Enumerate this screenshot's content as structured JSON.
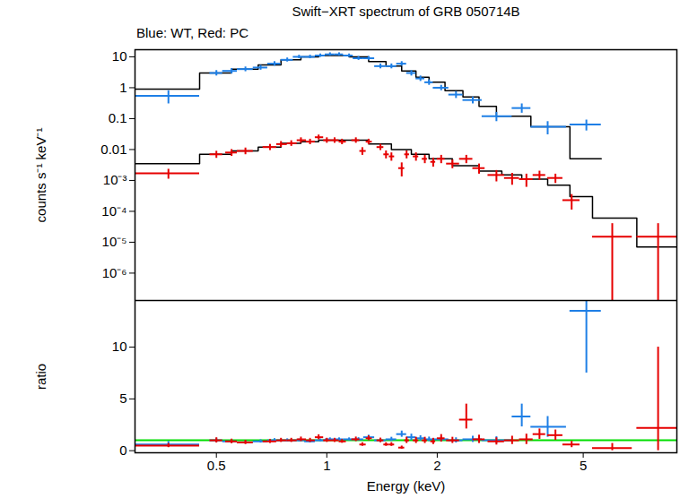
{
  "chart_data": [
    {
      "type": "scatter",
      "title": "Swift−XRT spectrum of GRB 050714B",
      "subtitle": "Blue: WT, Red: PC",
      "ylabel": "counts s⁻¹ keV⁻¹",
      "log": true,
      "tick_labels": "y",
      "xlim": [
        0.3,
        9
      ],
      "xticks": [
        0.5,
        1,
        2,
        5
      ],
      "ylim": [
        1.3e-07,
        17
      ],
      "yticks": [
        10,
        1,
        0.1,
        0.01,
        {
          "value": 0.001,
          "label": "10⁻³"
        },
        {
          "value": 0.0001,
          "label": "10⁻⁴"
        },
        {
          "value": 1e-05,
          "label": "10⁻⁵"
        },
        {
          "value": 1e-06,
          "label": "10⁻⁶"
        }
      ],
      "series": [
        {
          "color": "#1e7fe6",
          "x": [
            0.37,
            0.5,
            0.55,
            0.6,
            0.66,
            0.72,
            0.78,
            0.84,
            0.9,
            0.96,
            1.02,
            1.08,
            1.15,
            1.22,
            1.3,
            1.4,
            1.5,
            1.6,
            1.7,
            1.8,
            1.9,
            2.05,
            2.25,
            2.5,
            2.9,
            3.4,
            4.0,
            5.1
          ],
          "x_low": [
            0.3,
            0.48,
            0.52,
            0.57,
            0.63,
            0.69,
            0.75,
            0.81,
            0.87,
            0.93,
            0.99,
            1.05,
            1.11,
            1.18,
            1.26,
            1.35,
            1.45,
            1.55,
            1.65,
            1.75,
            1.85,
            1.95,
            2.15,
            2.35,
            2.65,
            3.2,
            3.6,
            4.6
          ],
          "x_high": [
            0.45,
            0.52,
            0.57,
            0.63,
            0.69,
            0.75,
            0.81,
            0.87,
            0.93,
            0.99,
            1.05,
            1.11,
            1.18,
            1.26,
            1.35,
            1.45,
            1.55,
            1.65,
            1.75,
            1.85,
            1.95,
            2.15,
            2.35,
            2.65,
            3.2,
            3.6,
            4.5,
            5.6
          ],
          "values": [
            0.55,
            3,
            3.5,
            4,
            4.5,
            6,
            8,
            10,
            10,
            11,
            12,
            12,
            11,
            9,
            9,
            5,
            5,
            6,
            3,
            2,
            1.5,
            1,
            0.6,
            0.4,
            0.12,
            0.22,
            0.055,
            0.065
          ],
          "y_low": [
            0.3,
            2.4,
            2.8,
            3.3,
            3.7,
            5,
            6.8,
            8.7,
            8.7,
            9.6,
            10.5,
            10.5,
            9.6,
            7.7,
            7.7,
            4.1,
            4.1,
            5,
            2.4,
            1.6,
            1.2,
            0.8,
            0.45,
            0.3,
            0.08,
            0.15,
            0.03,
            0.04
          ],
          "y_high": [
            0.8,
            3.6,
            4.2,
            4.7,
            5.3,
            7,
            9.2,
            11.3,
            11.3,
            12.4,
            13.5,
            13.5,
            12.4,
            10.3,
            10.3,
            5.9,
            5.9,
            7,
            3.6,
            2.4,
            1.8,
            1.2,
            0.75,
            0.5,
            0.16,
            0.3,
            0.08,
            0.09
          ],
          "model": {
            "color": "#000000",
            "x": [
              0.3,
              0.45,
              0.55,
              0.65,
              0.75,
              0.85,
              0.95,
              1.05,
              1.15,
              1.3,
              1.45,
              1.6,
              1.75,
              1.9,
              2.1,
              2.35,
              2.6,
              2.9,
              3.2,
              3.6,
              4.6,
              5.6
            ],
            "y": [
              0.9,
              3,
              4,
              5.5,
              8,
              10,
              11,
              11,
              10,
              7,
              5,
              3.5,
              2.2,
              1.5,
              0.8,
              0.5,
              0.25,
              0.12,
              0.12,
              0.055,
              0.005,
              0.005
            ]
          }
        },
        {
          "color": "#e60000",
          "x": [
            0.37,
            0.5,
            0.55,
            0.6,
            0.7,
            0.75,
            0.8,
            0.85,
            0.9,
            0.95,
            1.0,
            1.05,
            1.1,
            1.2,
            1.25,
            1.3,
            1.4,
            1.45,
            1.5,
            1.6,
            1.65,
            1.75,
            1.85,
            1.95,
            2.05,
            2.2,
            2.4,
            2.6,
            2.9,
            3.2,
            3.5,
            3.8,
            4.2,
            4.65,
            6,
            8
          ],
          "x_low": [
            0.3,
            0.48,
            0.53,
            0.57,
            0.67,
            0.73,
            0.78,
            0.83,
            0.88,
            0.93,
            0.98,
            1.03,
            1.08,
            1.17,
            1.23,
            1.28,
            1.37,
            1.43,
            1.48,
            1.57,
            1.63,
            1.72,
            1.82,
            1.92,
            2.0,
            2.12,
            2.3,
            2.5,
            2.75,
            3.05,
            3.35,
            3.65,
            4.0,
            4.4,
            5.3,
            7.0
          ],
          "x_high": [
            0.45,
            0.52,
            0.57,
            0.63,
            0.73,
            0.78,
            0.83,
            0.88,
            0.93,
            0.98,
            1.03,
            1.08,
            1.13,
            1.23,
            1.28,
            1.33,
            1.43,
            1.48,
            1.53,
            1.63,
            1.68,
            1.78,
            1.88,
            1.98,
            2.1,
            2.3,
            2.5,
            2.7,
            3.05,
            3.35,
            3.65,
            3.95,
            4.4,
            4.9,
            6.8,
            9.0
          ],
          "values": [
            0.0017,
            0.007,
            0.008,
            0.009,
            0.012,
            0.015,
            0.016,
            0.02,
            0.018,
            0.025,
            0.02,
            0.02,
            0.018,
            0.02,
            0.009,
            0.018,
            0.012,
            0.007,
            0.006,
            0.0025,
            0.007,
            0.006,
            0.005,
            0.004,
            0.005,
            0.0035,
            0.005,
            0.0025,
            0.0015,
            0.0012,
            0.0011,
            0.0015,
            0.0012,
            0.00023,
            1.5e-05,
            1.5e-05
          ],
          "y_low": [
            0.0011,
            0.0052,
            0.006,
            0.0068,
            0.0093,
            0.0118,
            0.0127,
            0.016,
            0.0144,
            0.0205,
            0.016,
            0.016,
            0.0144,
            0.016,
            0.0065,
            0.0144,
            0.0093,
            0.005,
            0.0042,
            0.0013,
            0.005,
            0.0042,
            0.0035,
            0.0027,
            0.0035,
            0.0024,
            0.0035,
            0.0016,
            0.0009,
            0.0007,
            0.0006,
            0.001,
            0.0008,
            0.00011,
            1e-07,
            1e-07
          ],
          "y_high": [
            0.0023,
            0.0088,
            0.01,
            0.0112,
            0.0147,
            0.0182,
            0.0193,
            0.024,
            0.0216,
            0.0295,
            0.024,
            0.024,
            0.0216,
            0.024,
            0.0115,
            0.0216,
            0.0147,
            0.009,
            0.0078,
            0.0037,
            0.009,
            0.0078,
            0.0065,
            0.0053,
            0.0065,
            0.0046,
            0.0065,
            0.0034,
            0.0021,
            0.0017,
            0.0016,
            0.002,
            0.0016,
            0.00035,
            4e-05,
            4e-05
          ],
          "model": {
            "color": "#000000",
            "x": [
              0.3,
              0.45,
              0.55,
              0.65,
              0.75,
              0.85,
              0.95,
              1.1,
              1.3,
              1.5,
              1.7,
              1.9,
              2.2,
              2.6,
              3.0,
              3.4,
              4.0,
              4.6,
              5.3,
              7,
              9
            ],
            "y": [
              0.0035,
              0.007,
              0.009,
              0.012,
              0.016,
              0.018,
              0.02,
              0.02,
              0.015,
              0.01,
              0.007,
              0.005,
              0.003,
              0.002,
              0.0015,
              0.0011,
              0.0007,
              0.0003,
              6e-05,
              7e-06,
              7e-06
            ]
          }
        }
      ]
    },
    {
      "type": "scatter",
      "xlabel": "Energy (keV)",
      "ylabel": "ratio",
      "log": "x",
      "xlim": [
        0.3,
        9
      ],
      "xticks": [
        0.5,
        1,
        2,
        5
      ],
      "ylim": [
        -0.2,
        14.5
      ],
      "yticks": [
        0,
        5,
        10
      ],
      "hline": {
        "value": 1,
        "color": "#00dd00"
      },
      "series": [
        {
          "color": "#1e7fe6",
          "x": [
            0.37,
            0.5,
            0.55,
            0.6,
            0.66,
            0.72,
            0.78,
            0.84,
            0.9,
            0.96,
            1.02,
            1.08,
            1.15,
            1.22,
            1.3,
            1.4,
            1.5,
            1.6,
            1.7,
            1.8,
            1.9,
            2.05,
            2.25,
            2.5,
            2.9,
            3.4,
            4.0,
            5.1
          ],
          "x_low": [
            0.3,
            0.48,
            0.52,
            0.57,
            0.63,
            0.69,
            0.75,
            0.81,
            0.87,
            0.93,
            0.99,
            1.05,
            1.11,
            1.18,
            1.26,
            1.35,
            1.45,
            1.55,
            1.65,
            1.75,
            1.85,
            1.95,
            2.15,
            2.35,
            2.65,
            3.2,
            3.6,
            4.6
          ],
          "x_high": [
            0.45,
            0.52,
            0.57,
            0.63,
            0.69,
            0.75,
            0.81,
            0.87,
            0.93,
            0.99,
            1.05,
            1.11,
            1.18,
            1.26,
            1.35,
            1.45,
            1.55,
            1.65,
            1.75,
            1.85,
            1.95,
            2.15,
            2.35,
            2.65,
            3.2,
            3.6,
            4.5,
            5.6
          ],
          "values": [
            0.6,
            1,
            0.9,
            0.8,
            0.9,
            1,
            1,
            1,
            0.9,
            1,
            1.1,
            1.1,
            1.1,
            1.1,
            1.3,
            1,
            1.1,
            1.6,
            1.3,
            1.2,
            1.1,
            1.1,
            1,
            1.1,
            1,
            3.3,
            2.3,
            13.5
          ],
          "y_low": [
            0.35,
            0.8,
            0.72,
            0.66,
            0.74,
            0.83,
            0.85,
            0.87,
            0.78,
            0.87,
            0.96,
            0.96,
            0.96,
            0.94,
            1.1,
            0.82,
            0.9,
            1.3,
            1,
            0.95,
            0.88,
            0.88,
            0.75,
            0.8,
            0.7,
            2.3,
            1.3,
            7.5
          ],
          "y_high": [
            0.9,
            1.2,
            1.08,
            0.94,
            1.06,
            1.17,
            1.15,
            1.13,
            1.02,
            1.13,
            1.24,
            1.24,
            1.24,
            1.26,
            1.5,
            1.18,
            1.3,
            1.9,
            1.6,
            1.45,
            1.32,
            1.32,
            1.25,
            1.4,
            1.35,
            4.5,
            3.3,
            20
          ]
        },
        {
          "color": "#e60000",
          "x": [
            0.37,
            0.5,
            0.55,
            0.6,
            0.7,
            0.75,
            0.8,
            0.85,
            0.9,
            0.95,
            1.0,
            1.05,
            1.1,
            1.2,
            1.25,
            1.3,
            1.4,
            1.45,
            1.5,
            1.6,
            1.65,
            1.75,
            1.85,
            1.95,
            2.05,
            2.2,
            2.4,
            2.6,
            2.9,
            3.2,
            3.5,
            3.8,
            4.2,
            4.65,
            6,
            8
          ],
          "x_low": [
            0.3,
            0.48,
            0.53,
            0.57,
            0.67,
            0.73,
            0.78,
            0.83,
            0.88,
            0.93,
            0.98,
            1.03,
            1.08,
            1.17,
            1.23,
            1.28,
            1.37,
            1.43,
            1.48,
            1.57,
            1.63,
            1.72,
            1.82,
            1.92,
            2.0,
            2.12,
            2.3,
            2.5,
            2.75,
            3.05,
            3.35,
            3.65,
            4.0,
            4.4,
            5.3,
            7.0
          ],
          "x_high": [
            0.45,
            0.52,
            0.57,
            0.63,
            0.73,
            0.78,
            0.83,
            0.88,
            0.93,
            0.98,
            1.03,
            1.08,
            1.13,
            1.23,
            1.28,
            1.33,
            1.43,
            1.48,
            1.53,
            1.63,
            1.68,
            1.78,
            1.88,
            1.98,
            2.1,
            2.3,
            2.5,
            2.7,
            3.05,
            3.35,
            3.65,
            3.95,
            4.4,
            4.9,
            6.8,
            9.0
          ],
          "values": [
            0.5,
            1,
            0.9,
            0.8,
            0.9,
            1,
            1,
            1.1,
            1,
            1.3,
            1,
            1,
            0.9,
            1.1,
            0.6,
            1.2,
            1,
            0.6,
            0.6,
            0.3,
            1,
            1,
            1,
            0.9,
            1.2,
            1,
            3,
            1.1,
            0.9,
            1,
            1.1,
            1.6,
            1.5,
            0.6,
            0.25,
            2.2
          ],
          "y_low": [
            0.3,
            0.75,
            0.68,
            0.6,
            0.7,
            0.8,
            0.8,
            0.88,
            0.8,
            1.06,
            0.8,
            0.8,
            0.72,
            0.88,
            0.43,
            0.96,
            0.78,
            0.43,
            0.42,
            0.15,
            0.7,
            0.7,
            0.7,
            0.6,
            0.84,
            0.7,
            2.1,
            0.7,
            0.55,
            0.6,
            0.6,
            1.1,
            1,
            0.3,
            0,
            0
          ],
          "y_high": [
            0.7,
            1.25,
            1.12,
            1,
            1.1,
            1.2,
            1.2,
            1.32,
            1.2,
            1.54,
            1.2,
            1.2,
            1.08,
            1.32,
            0.77,
            1.44,
            1.22,
            0.77,
            0.78,
            0.45,
            1.3,
            1.3,
            1.3,
            1.2,
            1.56,
            1.3,
            4.5,
            1.5,
            1.25,
            1.4,
            1.6,
            2.1,
            2,
            0.9,
            0.7,
            10
          ]
        }
      ]
    }
  ]
}
